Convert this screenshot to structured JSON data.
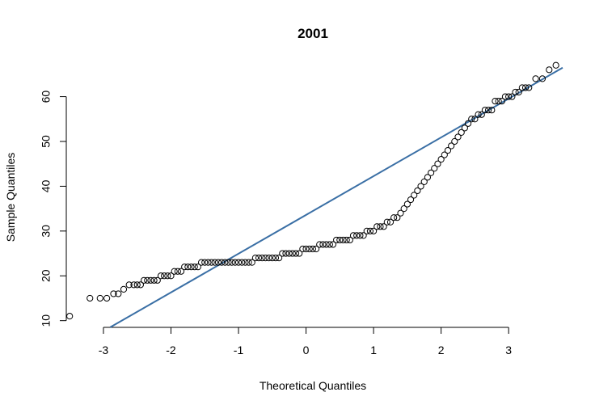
{
  "chart_data": {
    "type": "scatter",
    "title": "2001",
    "xlabel": "Theoretical Quantiles",
    "ylabel": "Sample Quantiles",
    "xlim": [
      -3.55,
      3.8
    ],
    "ylim": [
      8.5,
      67.5
    ],
    "x_ticks": [
      "-3",
      "-2",
      "-1",
      "0",
      "1",
      "2",
      "3"
    ],
    "y_ticks": [
      "10",
      "20",
      "30",
      "40",
      "50",
      "60"
    ],
    "grid": false,
    "legend": "none",
    "point_color": "#000000",
    "reference_line": {
      "color": "#3a6fa5",
      "intercept": 33.6,
      "slope": 8.65
    },
    "points": [
      [
        -3.5,
        11
      ],
      [
        -3.2,
        15
      ],
      [
        -3.05,
        15
      ],
      [
        -2.95,
        15
      ],
      [
        -2.85,
        16
      ],
      [
        -2.78,
        16
      ],
      [
        -2.7,
        17
      ],
      [
        -2.62,
        18
      ],
      [
        -2.55,
        18
      ],
      [
        -2.5,
        18
      ],
      [
        -2.45,
        18
      ],
      [
        -2.4,
        19
      ],
      [
        -2.35,
        19
      ],
      [
        -2.3,
        19
      ],
      [
        -2.25,
        19
      ],
      [
        -2.2,
        19
      ],
      [
        -2.15,
        20
      ],
      [
        -2.1,
        20
      ],
      [
        -2.05,
        20
      ],
      [
        -2.0,
        20
      ],
      [
        -1.95,
        21
      ],
      [
        -1.9,
        21
      ],
      [
        -1.85,
        21
      ],
      [
        -1.8,
        22
      ],
      [
        -1.75,
        22
      ],
      [
        -1.7,
        22
      ],
      [
        -1.65,
        22
      ],
      [
        -1.6,
        22
      ],
      [
        -1.55,
        23
      ],
      [
        -1.5,
        23
      ],
      [
        -1.45,
        23
      ],
      [
        -1.4,
        23
      ],
      [
        -1.35,
        23
      ],
      [
        -1.3,
        23
      ],
      [
        -1.25,
        23
      ],
      [
        -1.2,
        23
      ],
      [
        -1.15,
        23
      ],
      [
        -1.1,
        23
      ],
      [
        -1.05,
        23
      ],
      [
        -1.0,
        23
      ],
      [
        -0.95,
        23
      ],
      [
        -0.9,
        23
      ],
      [
        -0.85,
        23
      ],
      [
        -0.8,
        23
      ],
      [
        -0.75,
        24
      ],
      [
        -0.7,
        24
      ],
      [
        -0.65,
        24
      ],
      [
        -0.6,
        24
      ],
      [
        -0.55,
        24
      ],
      [
        -0.5,
        24
      ],
      [
        -0.45,
        24
      ],
      [
        -0.4,
        24
      ],
      [
        -0.35,
        25
      ],
      [
        -0.3,
        25
      ],
      [
        -0.25,
        25
      ],
      [
        -0.2,
        25
      ],
      [
        -0.15,
        25
      ],
      [
        -0.1,
        25
      ],
      [
        -0.05,
        26
      ],
      [
        0.0,
        26
      ],
      [
        0.05,
        26
      ],
      [
        0.1,
        26
      ],
      [
        0.15,
        26
      ],
      [
        0.2,
        27
      ],
      [
        0.25,
        27
      ],
      [
        0.3,
        27
      ],
      [
        0.35,
        27
      ],
      [
        0.4,
        27
      ],
      [
        0.45,
        28
      ],
      [
        0.5,
        28
      ],
      [
        0.55,
        28
      ],
      [
        0.6,
        28
      ],
      [
        0.65,
        28
      ],
      [
        0.7,
        29
      ],
      [
        0.75,
        29
      ],
      [
        0.8,
        29
      ],
      [
        0.85,
        29
      ],
      [
        0.9,
        30
      ],
      [
        0.95,
        30
      ],
      [
        1.0,
        30
      ],
      [
        1.05,
        31
      ],
      [
        1.1,
        31
      ],
      [
        1.15,
        31
      ],
      [
        1.2,
        32
      ],
      [
        1.25,
        32
      ],
      [
        1.3,
        33
      ],
      [
        1.35,
        33
      ],
      [
        1.4,
        34
      ],
      [
        1.45,
        35
      ],
      [
        1.5,
        36
      ],
      [
        1.55,
        37
      ],
      [
        1.6,
        38
      ],
      [
        1.65,
        39
      ],
      [
        1.7,
        40
      ],
      [
        1.75,
        41
      ],
      [
        1.8,
        42
      ],
      [
        1.85,
        43
      ],
      [
        1.9,
        44
      ],
      [
        1.95,
        45
      ],
      [
        2.0,
        46
      ],
      [
        2.05,
        47
      ],
      [
        2.1,
        48
      ],
      [
        2.15,
        49
      ],
      [
        2.2,
        50
      ],
      [
        2.25,
        51
      ],
      [
        2.3,
        52
      ],
      [
        2.35,
        53
      ],
      [
        2.4,
        54
      ],
      [
        2.45,
        55
      ],
      [
        2.5,
        55
      ],
      [
        2.55,
        56
      ],
      [
        2.6,
        56
      ],
      [
        2.65,
        57
      ],
      [
        2.7,
        57
      ],
      [
        2.75,
        57
      ],
      [
        2.8,
        59
      ],
      [
        2.85,
        59
      ],
      [
        2.9,
        59
      ],
      [
        2.95,
        60
      ],
      [
        3.0,
        60
      ],
      [
        3.05,
        60
      ],
      [
        3.1,
        61
      ],
      [
        3.15,
        61
      ],
      [
        3.2,
        62
      ],
      [
        3.25,
        62
      ],
      [
        3.3,
        62
      ],
      [
        3.4,
        64
      ],
      [
        3.5,
        64
      ],
      [
        3.6,
        66
      ],
      [
        3.7,
        67
      ]
    ]
  }
}
